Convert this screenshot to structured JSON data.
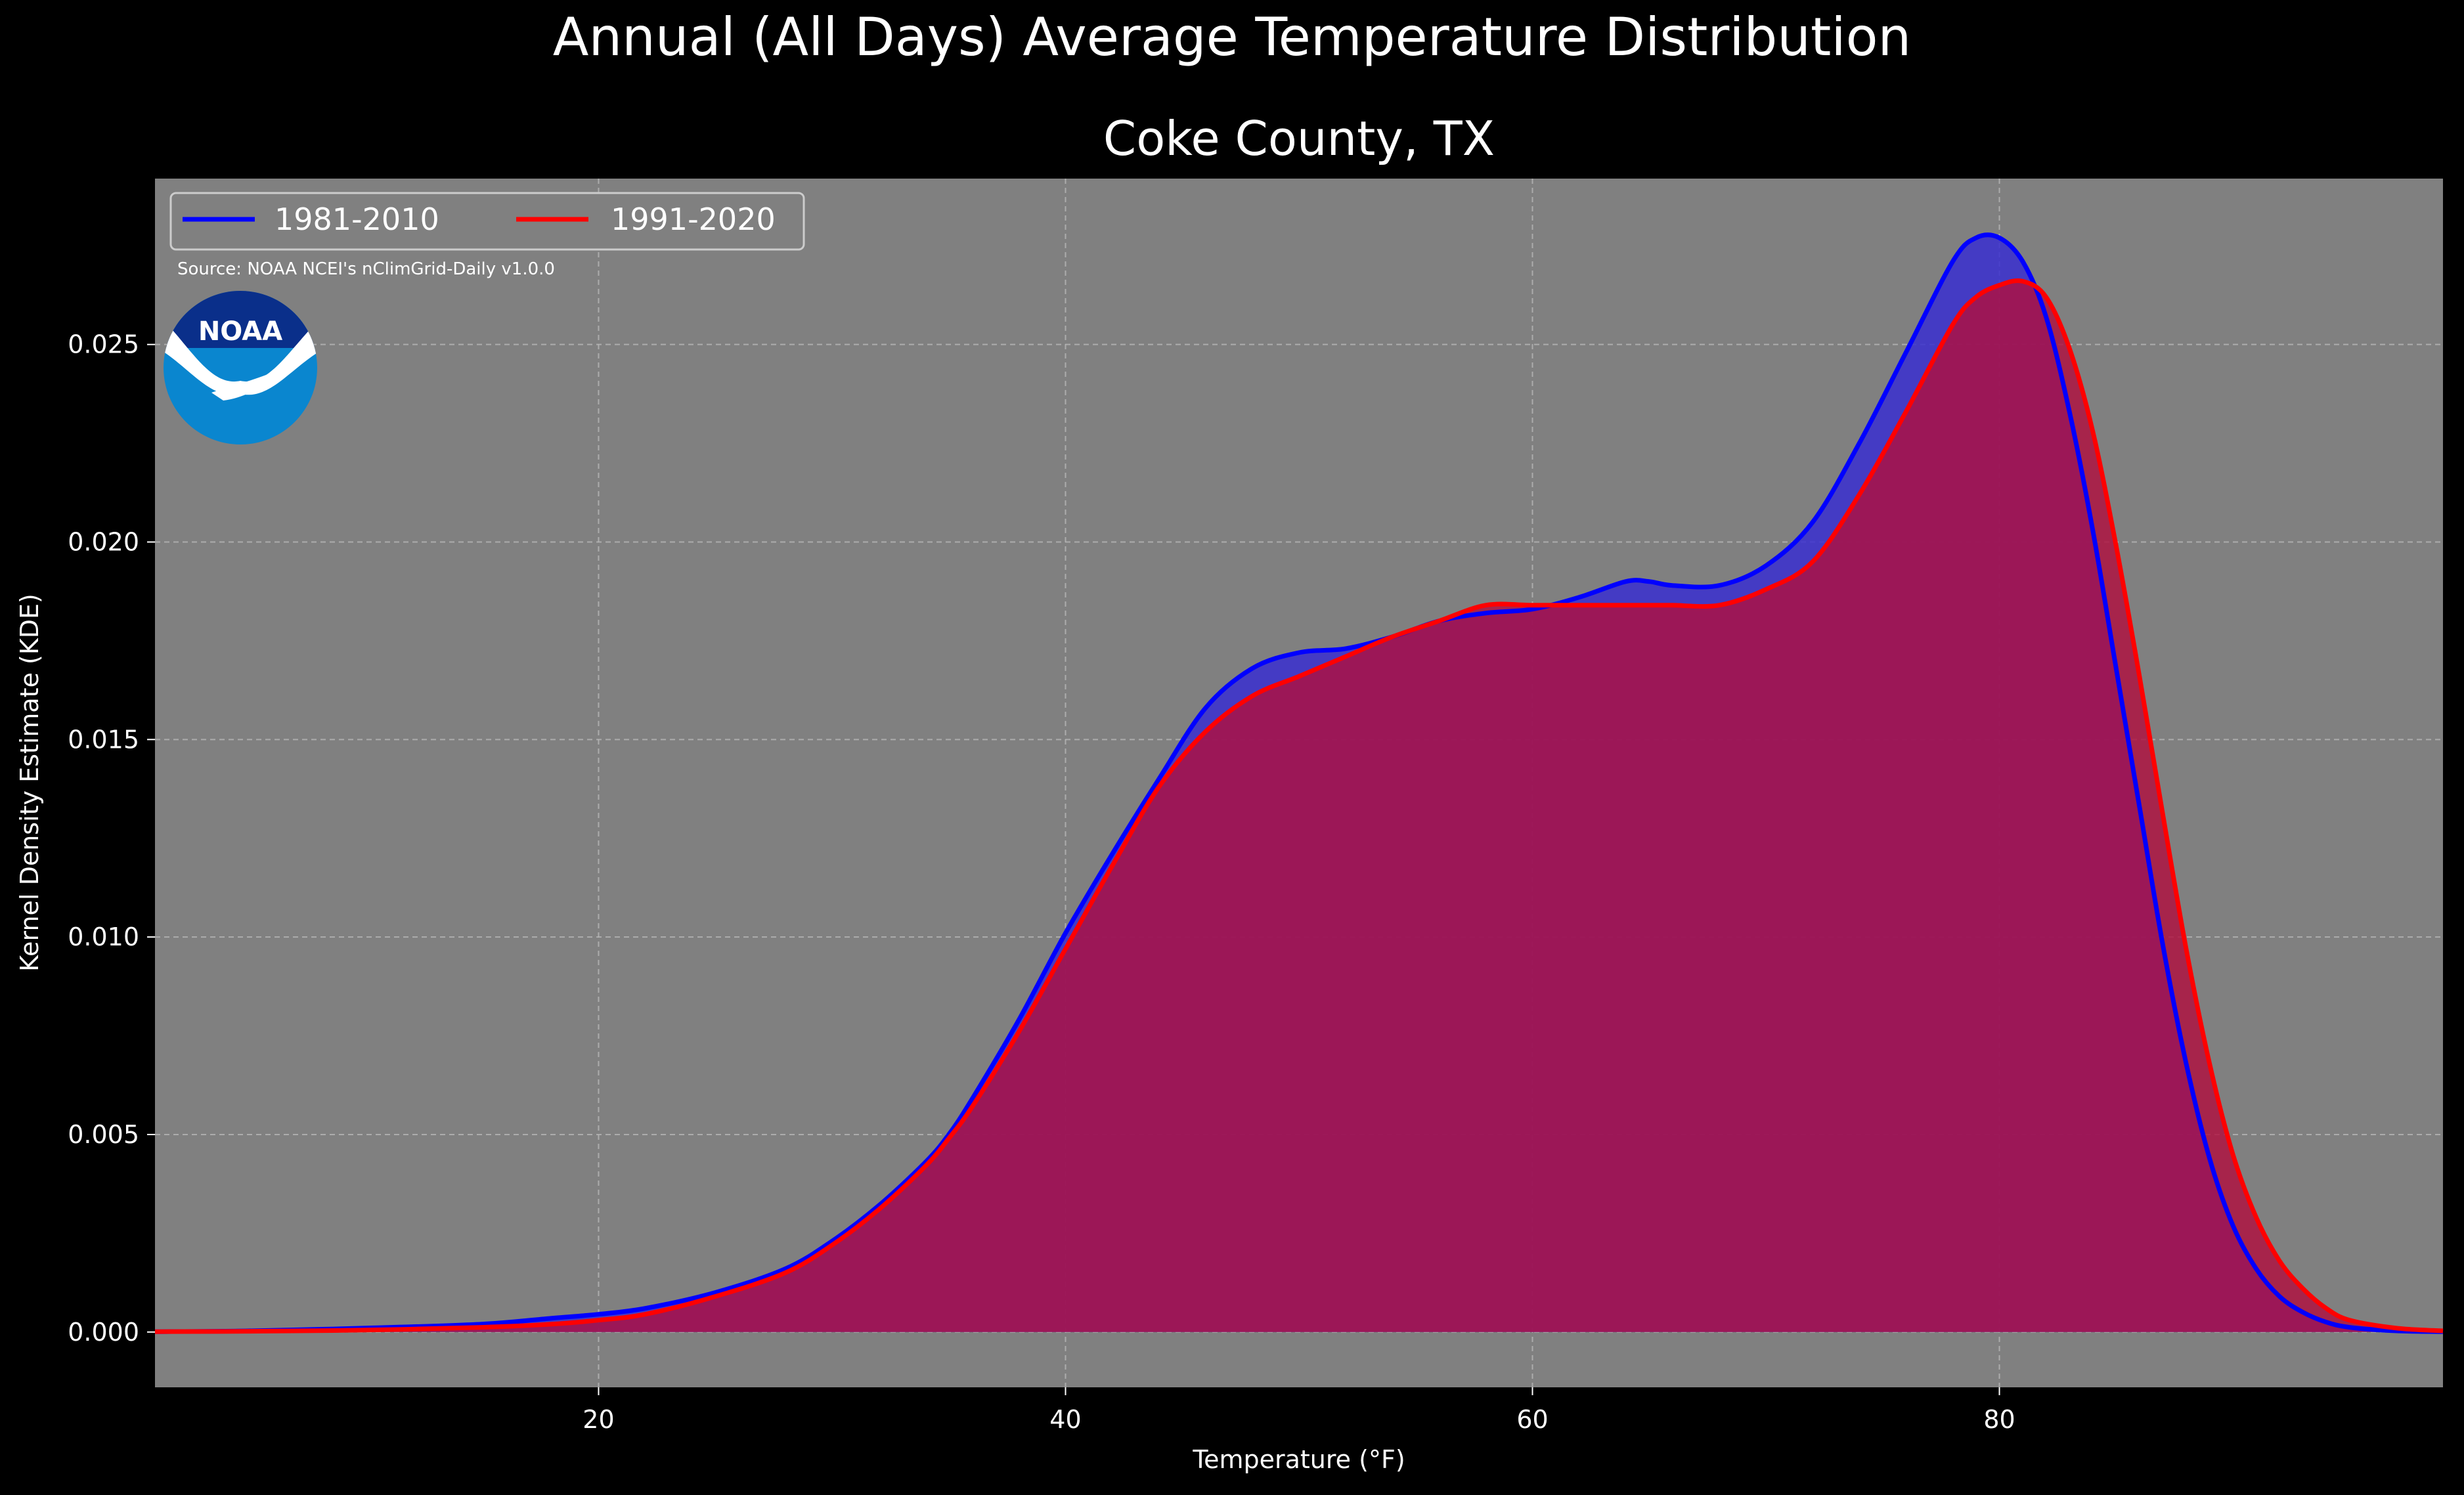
{
  "figure": {
    "suptitle": "Annual (All Days) Average Temperature Distribution",
    "title": "Coke County, TX",
    "source": "Source: NOAA NCEI's nClimGrid-Daily v1.0.0",
    "logo_text": "NOAA"
  },
  "colors": {
    "background": "#000000",
    "plot_bg": "#808080",
    "series1_line": "#0000ff",
    "series1_fill": "#3a2fd0",
    "series2_line": "#ff0000",
    "series2_fill": "#b01040",
    "logo_dark": "#0a2f8a",
    "logo_light": "#0a86cf"
  },
  "chart_data": {
    "type": "area",
    "xlabel": "Temperature (°F)",
    "ylabel": "Kernel Density Estimate (KDE)",
    "xlim": [
      1,
      99
    ],
    "ylim": [
      -0.0014,
      0.0292
    ],
    "xticks": [
      20,
      40,
      60,
      80
    ],
    "xtick_labels": [
      "20",
      "40",
      "60",
      "80"
    ],
    "yticks": [
      0.0,
      0.005,
      0.01,
      0.015,
      0.02,
      0.025
    ],
    "ytick_labels": [
      "0.000",
      "0.005",
      "0.010",
      "0.015",
      "0.020",
      "0.025"
    ],
    "grid": true,
    "legend_position": "top-left",
    "x": [
      1,
      5,
      10,
      15,
      18,
      20,
      22,
      25,
      28,
      30,
      32,
      34,
      35,
      36,
      38,
      40,
      42,
      44,
      46,
      48,
      50,
      52,
      54,
      56,
      58,
      60,
      62,
      64,
      65,
      66,
      68,
      70,
      72,
      74,
      76,
      78,
      79,
      80,
      81,
      82,
      83,
      84,
      85,
      86,
      87,
      88,
      89,
      90,
      91,
      92,
      93,
      94,
      95,
      97,
      99
    ],
    "series": [
      {
        "name": "1981-2010",
        "values": [
          1e-05,
          3e-05,
          0.0001,
          0.0002,
          0.00035,
          0.00045,
          0.0006,
          0.001,
          0.0016,
          0.0023,
          0.0032,
          0.0043,
          0.005,
          0.0059,
          0.0079,
          0.0101,
          0.0121,
          0.014,
          0.0158,
          0.0168,
          0.0172,
          0.0173,
          0.0176,
          0.018,
          0.0182,
          0.0183,
          0.0186,
          0.019,
          0.019,
          0.0189,
          0.0189,
          0.0194,
          0.0205,
          0.0225,
          0.0248,
          0.0271,
          0.0277,
          0.0277,
          0.0271,
          0.0257,
          0.0233,
          0.0203,
          0.0168,
          0.0133,
          0.0098,
          0.0068,
          0.0044,
          0.0027,
          0.0016,
          0.0009,
          0.0005,
          0.00025,
          0.00012,
          3e-05,
          1e-05
        ]
      },
      {
        "name": "1991-2020",
        "values": [
          1e-05,
          2e-05,
          5e-05,
          0.00012,
          0.0002,
          0.0003,
          0.00045,
          0.0009,
          0.0015,
          0.0022,
          0.0031,
          0.0042,
          0.0049,
          0.0057,
          0.0076,
          0.0097,
          0.0118,
          0.0138,
          0.0152,
          0.0161,
          0.0166,
          0.0171,
          0.0176,
          0.018,
          0.0184,
          0.0184,
          0.0184,
          0.0184,
          0.0184,
          0.0184,
          0.0184,
          0.0188,
          0.0195,
          0.0212,
          0.0233,
          0.0255,
          0.0262,
          0.0265,
          0.0266,
          0.0262,
          0.0249,
          0.0228,
          0.0199,
          0.0166,
          0.0131,
          0.0097,
          0.0068,
          0.0045,
          0.0029,
          0.0018,
          0.0011,
          0.0006,
          0.0003,
          0.0001,
          3e-05
        ]
      }
    ]
  }
}
